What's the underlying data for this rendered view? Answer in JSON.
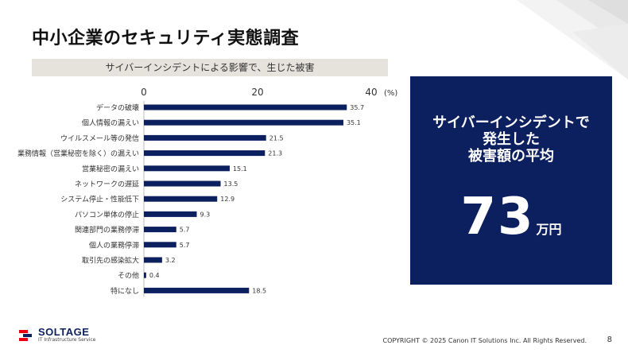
{
  "slide": {
    "title": "中小企業のセキュリティ実態調査",
    "page_number": "8",
    "copyright": "COPYRIGHT © 2025 Canon IT Solutions Inc. All Rights Reserved."
  },
  "panel": {
    "line1": "サイバーインシデントで",
    "line2": "発生した",
    "line3": "被害額の平均",
    "value": "73",
    "unit": "万円"
  },
  "logo": {
    "name": "SOLTAGE",
    "tagline": "IT Infrastructure Service"
  },
  "colors": {
    "bar": "#0c1f5e",
    "panel_bg": "#0c1f5e",
    "band_bg": "#e6e3dc",
    "logo_red": "#e60012"
  },
  "chart_data": {
    "type": "bar",
    "orientation": "horizontal",
    "title": "サイバーインシデントによる影響で、生じた被害",
    "unit_label": "(%)",
    "xlim": [
      0,
      40
    ],
    "ticks": [
      0,
      20,
      40
    ],
    "grid": false,
    "categories": [
      "データの破壊",
      "個人情報の漏えい",
      "ウイルスメール等の発信",
      "業務情報（営業秘密を除く）の漏えい",
      "営業秘密の漏えい",
      "ネットワークの遅延",
      "システム停止・性能低下",
      "パソコン単体の停止",
      "関連部門の業務停滞",
      "個人の業務停滞",
      "取引先の感染拡大",
      "その他",
      "特になし"
    ],
    "values": [
      35.7,
      35.1,
      21.5,
      21.3,
      15.1,
      13.5,
      12.9,
      9.3,
      5.7,
      5.7,
      3.2,
      0.4,
      18.5
    ],
    "value_labels": [
      "35.7",
      "35.1",
      "21.5",
      "21.3",
      "15.1",
      "13.5",
      "12.9",
      "9.3",
      "5.7",
      "5.7",
      "3.2",
      "0.4",
      "18.5"
    ]
  }
}
